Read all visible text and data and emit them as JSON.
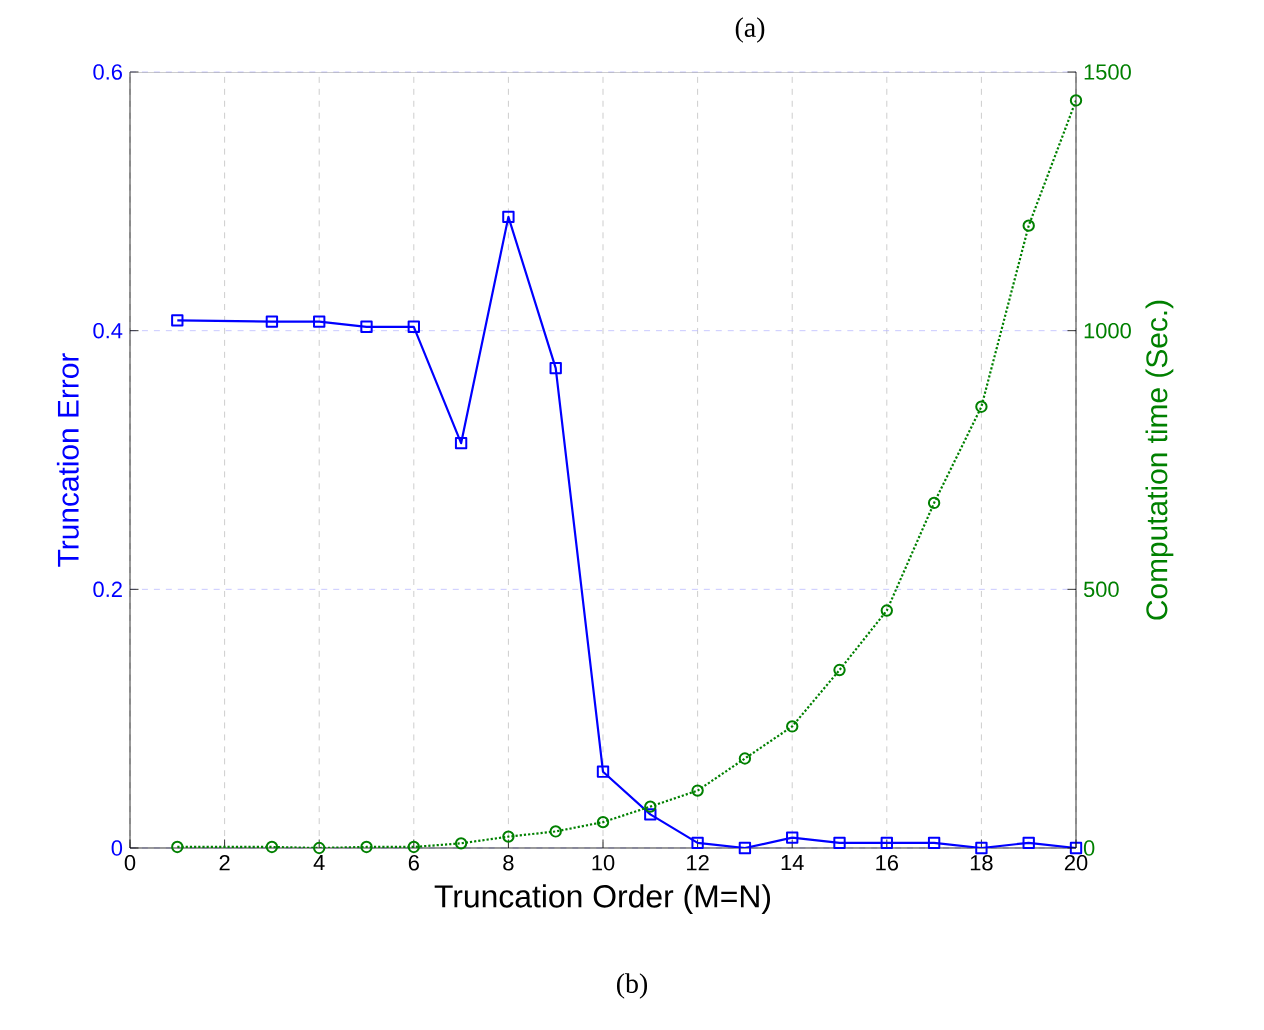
{
  "chart_data": {
    "type": "line",
    "xlabel": "Truncation Order (M=N)",
    "ylabel": "Truncation Error",
    "y2label": "Computation time (Sec.)",
    "xlim": [
      0,
      20
    ],
    "xticks": [
      0,
      2,
      4,
      6,
      8,
      10,
      12,
      14,
      16,
      18,
      20
    ],
    "ylim": [
      0,
      0.6
    ],
    "yticks": [
      0,
      0.2,
      0.4,
      0.6
    ],
    "y2lim": [
      0,
      1500
    ],
    "y2ticks": [
      0,
      500,
      1000,
      1500
    ],
    "grid": true,
    "annotations": [
      "(a)",
      "(b)"
    ],
    "series": [
      {
        "color": "#0000ff",
        "axis": "y",
        "marker": "square",
        "line_style": "solid",
        "x": [
          1,
          3,
          4,
          5,
          6,
          7,
          8,
          9,
          10,
          11,
          12,
          13,
          14,
          15,
          16,
          17,
          18,
          19,
          20
        ],
        "values": [
          0.408,
          0.407,
          0.407,
          0.403,
          0.403,
          0.313,
          0.488,
          0.371,
          0.059,
          0.026,
          0.004,
          0,
          0.008,
          0.004,
          0.004,
          0.004,
          0,
          0.004,
          0
        ]
      },
      {
        "color": "#008000",
        "axis": "y2",
        "marker": "circle",
        "line_style": "dotted",
        "x": [
          1,
          3,
          4,
          5,
          6,
          7,
          8,
          9,
          10,
          11,
          12,
          13,
          14,
          15,
          16,
          17,
          18,
          19,
          20
        ],
        "values": [
          2,
          2,
          0,
          2,
          2,
          9,
          22,
          32,
          50,
          80,
          111,
          173,
          235,
          344,
          459,
          667,
          853,
          1203,
          1445
        ]
      }
    ]
  }
}
